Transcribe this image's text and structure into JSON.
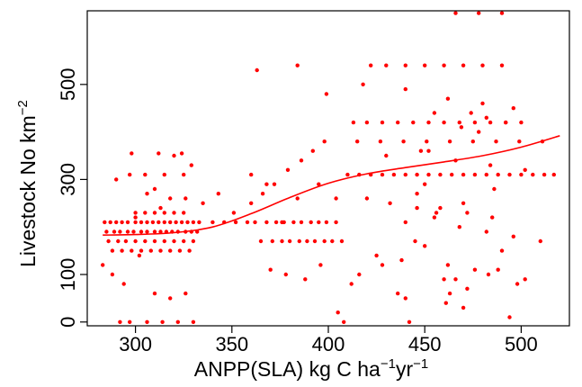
{
  "chart_data": {
    "type": "scatter",
    "title": "",
    "xlabel": {
      "base": "ANPP(SLA) kg C ha",
      "sup1": "−1",
      "mid": "yr",
      "sup2": "−1"
    },
    "ylabel": {
      "base": "Livestock No km",
      "sup": "−2"
    },
    "xlim": [
      275,
      525
    ],
    "ylim": [
      -8,
      655
    ],
    "xticks": [
      300,
      350,
      400,
      450,
      500
    ],
    "yticks": [
      0,
      100,
      300,
      500
    ],
    "grid": false,
    "legend": "none",
    "colors": {
      "points": "#ff0000",
      "curve": "#ff0000",
      "axis": "#000000"
    },
    "series": [
      {
        "kind": "points",
        "x": [
          284,
          287,
          290,
          293,
          296,
          300,
          303,
          306,
          309,
          312,
          315,
          318,
          321,
          324,
          327,
          330,
          333,
          285,
          289,
          292,
          296,
          299,
          303,
          306,
          310,
          313,
          316,
          319,
          322,
          326,
          329,
          332,
          286,
          291,
          295,
          300,
          305,
          310,
          315,
          320,
          325,
          330,
          288,
          293,
          298,
          303,
          308,
          313,
          318,
          323,
          328,
          300,
          305,
          310,
          315,
          320,
          325,
          297,
          305,
          315,
          325,
          340,
          346,
          352,
          358,
          283,
          288,
          294,
          302,
          310,
          318,
          326,
          292,
          297,
          306,
          314,
          322,
          330,
          298,
          312,
          324,
          306,
          318,
          362,
          368,
          373,
          377,
          382,
          386,
          391,
          395,
          399,
          404,
          365,
          371,
          376,
          380,
          385,
          389,
          393,
          398,
          402,
          407,
          360,
          366,
          372,
          379,
          386,
          392,
          398,
          404,
          370,
          378,
          388,
          396,
          363,
          384,
          399,
          410,
          416,
          422,
          428,
          434,
          440,
          446,
          452,
          458,
          464,
          470,
          476,
          482,
          488,
          494,
          500,
          506,
          512,
          517,
          422,
          430,
          440,
          450,
          460,
          470,
          480,
          490,
          413,
          420,
          428,
          436,
          444,
          452,
          460,
          468,
          476,
          484,
          492,
          500,
          415,
          427,
          439,
          451,
          463,
          475,
          487,
          499,
          511,
          420,
          432,
          446,
          458,
          472,
          486,
          440,
          455,
          468,
          482,
          496,
          510,
          425,
          438,
          450,
          462,
          476,
          490,
          466,
          478,
          490,
          430,
          448,
          466,
          484,
          502,
          418,
          440,
          462,
          480,
          496,
          412,
          436,
          460,
          461,
          483,
          498,
          405,
          442,
          470,
          494,
          408,
          446,
          456,
          470,
          485,
          455,
          474,
          492,
          416,
          428,
          466,
          290,
          300,
          313,
          326,
          310,
          329,
          320,
          360,
          395,
          440,
          472,
          502,
          463,
          488,
          335,
          343,
          351,
          368,
          376,
          384,
          445,
          450,
          469,
          452,
          478,
          482
        ],
        "y": [
          210,
          210,
          210,
          210,
          210,
          210,
          210,
          210,
          210,
          210,
          210,
          210,
          210,
          210,
          210,
          210,
          210,
          190,
          190,
          190,
          190,
          190,
          190,
          190,
          190,
          190,
          190,
          190,
          190,
          190,
          190,
          190,
          170,
          170,
          170,
          170,
          170,
          170,
          170,
          170,
          170,
          170,
          150,
          150,
          150,
          150,
          150,
          150,
          150,
          150,
          150,
          230,
          230,
          230,
          230,
          230,
          230,
          310,
          310,
          310,
          310,
          210,
          210,
          210,
          210,
          120,
          100,
          80,
          140,
          60,
          50,
          60,
          0,
          0,
          0,
          0,
          0,
          0,
          355,
          355,
          355,
          270,
          260,
          210,
          210,
          210,
          210,
          210,
          210,
          210,
          210,
          210,
          210,
          170,
          170,
          170,
          170,
          170,
          170,
          170,
          170,
          170,
          170,
          250,
          270,
          290,
          320,
          340,
          360,
          380,
          260,
          110,
          100,
          90,
          120,
          530,
          540,
          480,
          310,
          310,
          310,
          310,
          310,
          310,
          310,
          310,
          310,
          310,
          310,
          310,
          310,
          310,
          310,
          310,
          310,
          310,
          310,
          540,
          540,
          540,
          540,
          540,
          540,
          540,
          540,
          420,
          420,
          420,
          420,
          420,
          420,
          420,
          420,
          420,
          420,
          420,
          420,
          380,
          380,
          380,
          380,
          380,
          380,
          380,
          380,
          380,
          260,
          250,
          270,
          240,
          230,
          280,
          210,
          220,
          200,
          190,
          180,
          170,
          140,
          130,
          160,
          120,
          110,
          150,
          650,
          650,
          650,
          350,
          360,
          340,
          330,
          320,
          500,
          490,
          470,
          460,
          450,
          80,
          60,
          90,
          40,
          100,
          80,
          20,
          0,
          30,
          10,
          0,
          240,
          230,
          250,
          220,
          440,
          440,
          420,
          100,
          120,
          90,
          300,
          220,
          240,
          260,
          280,
          330,
          350,
          310,
          290,
          50,
          70,
          90,
          60,
          110,
          250,
          270,
          230,
          290,
          210,
          260,
          170,
          290,
          410,
          360,
          400,
          430
        ]
      },
      {
        "kind": "line",
        "x": [
          283,
          300,
          320,
          340,
          360,
          380,
          400,
          420,
          440,
          460,
          480,
          500,
          520
        ],
        "y": [
          183,
          184,
          188,
          200,
          228,
          262,
          292,
          312,
          325,
          337,
          350,
          368,
          392
        ]
      }
    ]
  }
}
